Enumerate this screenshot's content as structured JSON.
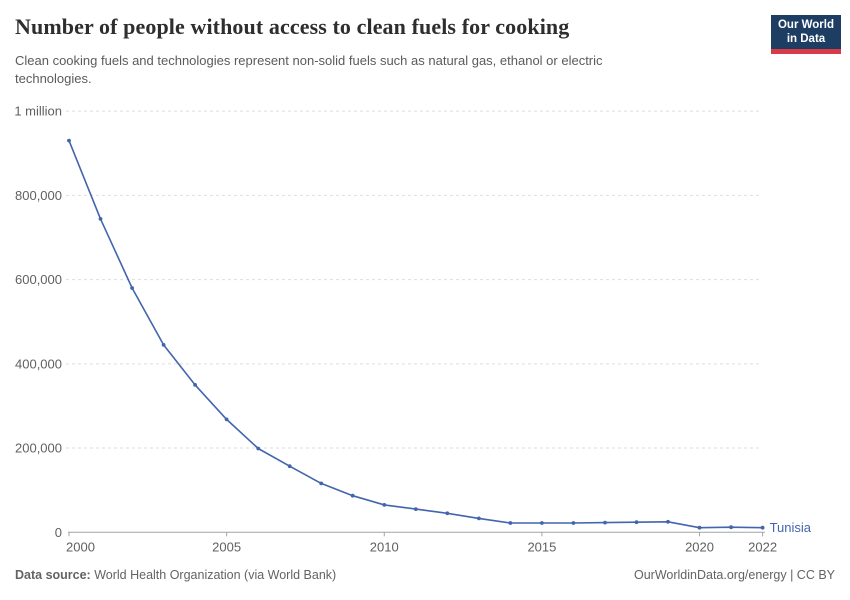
{
  "header": {
    "title": "Number of people without access to clean fuels for cooking",
    "subtitle": "Clean cooking fuels and technologies represent non-solid fuels such as natural gas, ethanol or electric technologies.",
    "logo": {
      "line1": "Our World",
      "line2": "in Data",
      "bg_color": "#1d3d63",
      "accent_color": "#d73a49"
    }
  },
  "chart_data": {
    "type": "line",
    "title": "Number of people without access to clean fuels for cooking",
    "x": [
      2000,
      2001,
      2002,
      2003,
      2004,
      2005,
      2006,
      2007,
      2008,
      2009,
      2010,
      2011,
      2012,
      2013,
      2014,
      2015,
      2016,
      2017,
      2018,
      2019,
      2020,
      2021,
      2022
    ],
    "series": [
      {
        "name": "Tunisia",
        "color": "#4265ac",
        "values": [
          930000,
          744000,
          580000,
          445000,
          350000,
          268000,
          199000,
          157000,
          116000,
          87000,
          65000,
          55000,
          45000,
          33000,
          22000,
          22000,
          22000,
          23000,
          24000,
          25000,
          11000,
          12000,
          11000
        ]
      }
    ],
    "xlabel": "",
    "ylabel": "",
    "xlim": [
      2000,
      2022
    ],
    "ylim": [
      0,
      1000000
    ],
    "xticks": [
      2000,
      2005,
      2010,
      2015,
      2020,
      2022
    ],
    "yticks": [
      {
        "value": 0,
        "label": "0"
      },
      {
        "value": 200000,
        "label": "200,000"
      },
      {
        "value": 400000,
        "label": "400,000"
      },
      {
        "value": 600000,
        "label": "600,000"
      },
      {
        "value": 800000,
        "label": "800,000"
      },
      {
        "value": 1000000,
        "label": "1 million"
      }
    ],
    "grid": "horizontal-dashed",
    "legend_position": "end-of-line-label",
    "colors": {
      "gridline": "#dedede",
      "axis": "#a3a3a3",
      "tick_label": "#606060"
    }
  },
  "footer": {
    "source_label": "Data source:",
    "source_text": " World Health Organization (via World Bank)",
    "credit": "OurWorldinData.org/energy | CC BY"
  }
}
